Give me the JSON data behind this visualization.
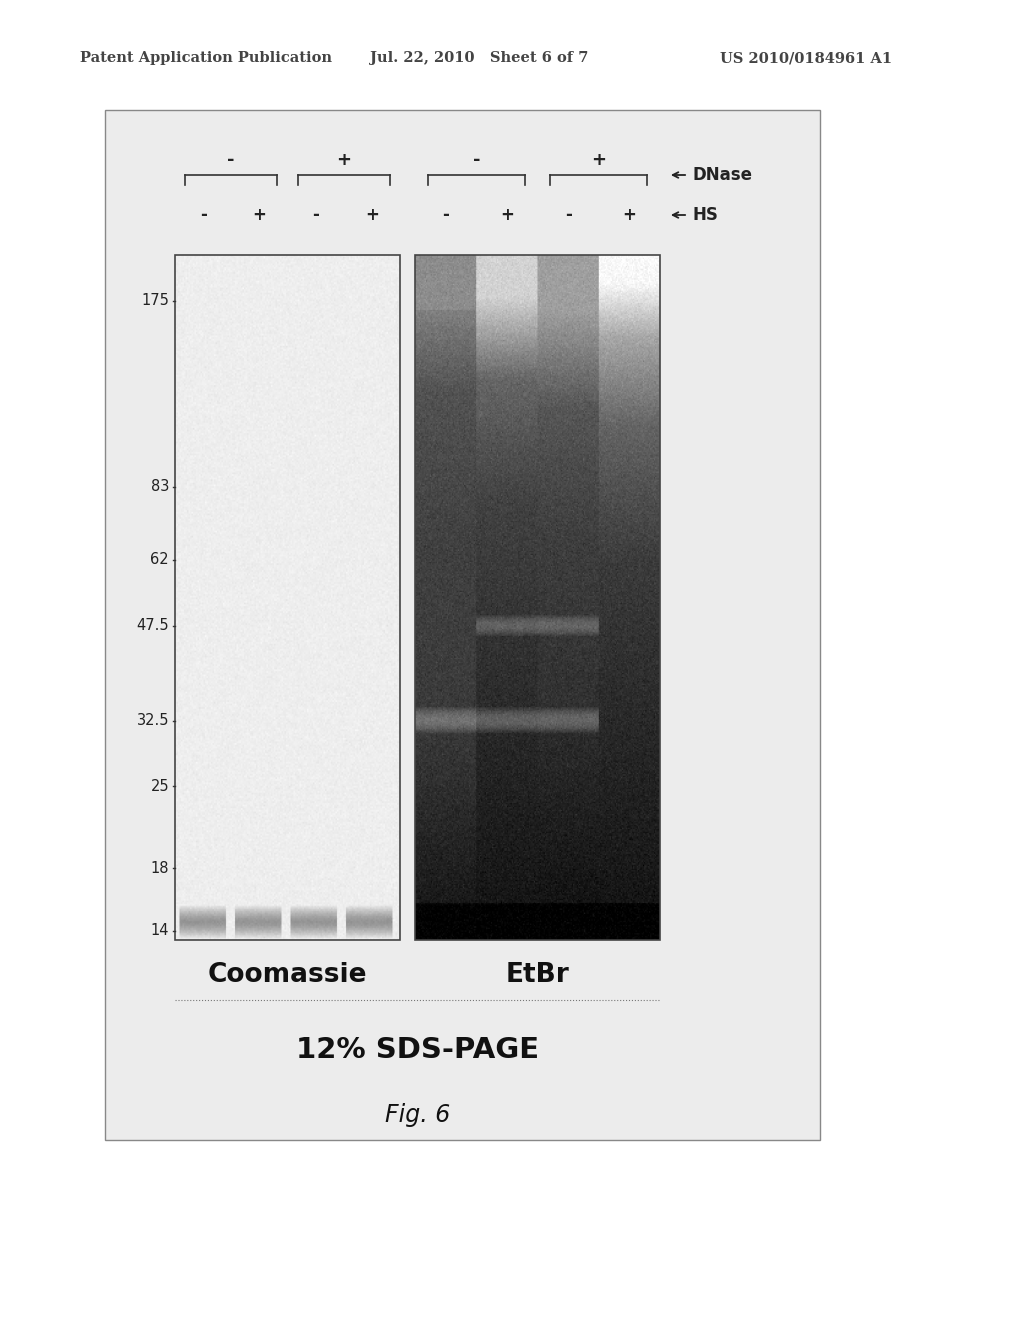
{
  "page_header_left": "Patent Application Publication",
  "page_header_mid": "Jul. 22, 2010   Sheet 6 of 7",
  "page_header_right": "US 2010/0184961 A1",
  "title_bottom": "12% SDS-PAGE",
  "fig_label": "Fig. 6",
  "dnase_label": "DNase",
  "hs_label": "HS",
  "coomassie_label": "Coomassie",
  "etbr_label": "EtBr",
  "mw_labels": [
    "175",
    "83",
    "62",
    "47.5",
    "32.5",
    "25",
    "18",
    "14"
  ],
  "mw_values": [
    175,
    83,
    62,
    47.5,
    32.5,
    25,
    18,
    14
  ],
  "hs_col_labels": [
    "-",
    "+",
    "-",
    "+"
  ],
  "bg_color": "#ffffff",
  "outer_frame_color": "#aaaaaa",
  "gel_border_color": "#555555",
  "text_color": "#222222",
  "header_text_color": "#444444"
}
